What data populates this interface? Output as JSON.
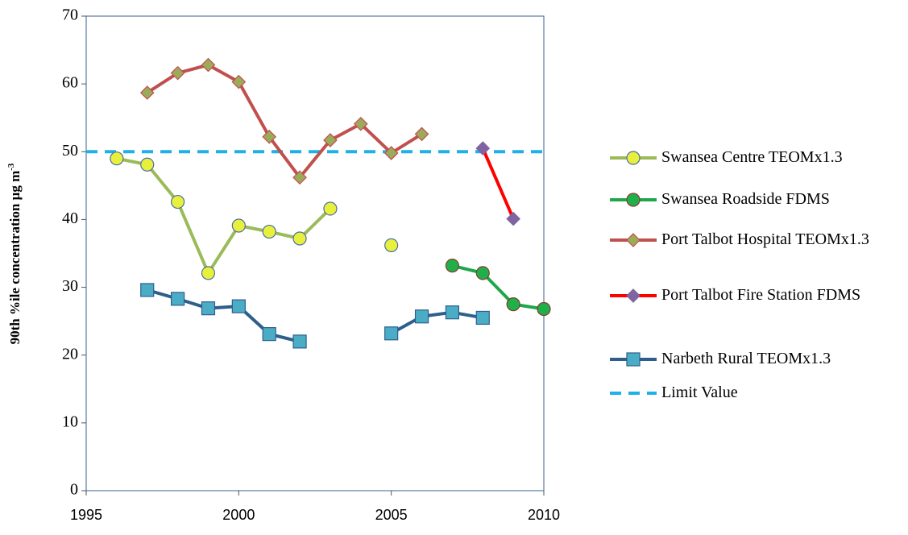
{
  "chart_data": {
    "type": "line",
    "y_label": "90th %ile concentration µg m",
    "y_label_superscript": "-3",
    "x": [
      1996,
      1997,
      1998,
      1999,
      2000,
      2001,
      2002,
      2003,
      2004,
      2005,
      2006,
      2007,
      2008,
      2009,
      2010
    ],
    "xlim": [
      1995,
      2010
    ],
    "xticks": [
      1995,
      2000,
      2005,
      2010
    ],
    "ylim": [
      0,
      70
    ],
    "yticks": [
      0,
      10,
      20,
      30,
      40,
      50,
      60,
      70
    ],
    "series": [
      {
        "name": "Swansea Centre TEOMx1.3",
        "color": "#9bbb59",
        "marker": "circle",
        "marker_fill": "#e8f03c",
        "marker_stroke": "#4a6fa5",
        "values": [
          49.0,
          48.1,
          42.6,
          32.1,
          39.1,
          38.2,
          37.2,
          41.6,
          null,
          36.2,
          null,
          null,
          null,
          null,
          null
        ]
      },
      {
        "name": "Swansea Roadside FDMS",
        "color": "#1fa64a",
        "marker": "circle",
        "marker_fill": "#1fb04c",
        "marker_stroke": "#8a3b2a",
        "values": [
          null,
          null,
          null,
          null,
          null,
          null,
          null,
          null,
          null,
          null,
          null,
          33.2,
          32.1,
          27.5,
          26.8
        ]
      },
      {
        "name": "Port Talbot Hospital TEOMx1.3",
        "color": "#c0504d",
        "marker": "diamond",
        "marker_fill": "#9bab59",
        "marker_stroke": "#c0504d",
        "values": [
          null,
          58.7,
          61.6,
          62.8,
          60.3,
          52.2,
          46.2,
          51.7,
          54.1,
          49.8,
          52.6,
          null,
          null,
          null,
          null
        ]
      },
      {
        "name": "Port Talbot Fire Station FDMS",
        "color": "#ff0000",
        "marker": "diamond",
        "marker_fill": "#8064a2",
        "marker_stroke": "#8064a2",
        "values": [
          null,
          null,
          null,
          null,
          null,
          null,
          null,
          null,
          null,
          null,
          null,
          null,
          50.5,
          40.1,
          null
        ]
      },
      {
        "name": "Narbeth Rural TEOMx1.3",
        "color": "#2e5f8c",
        "marker": "square",
        "marker_fill": "#4bacc6",
        "marker_stroke": "#2e5f8c",
        "values": [
          null,
          29.6,
          28.3,
          26.9,
          27.2,
          23.1,
          22.0,
          null,
          null,
          23.2,
          25.7,
          26.3,
          25.5,
          null,
          null
        ]
      }
    ],
    "limit": {
      "name": "Limit Value",
      "value": 50,
      "color": "#1fb0e8"
    }
  }
}
